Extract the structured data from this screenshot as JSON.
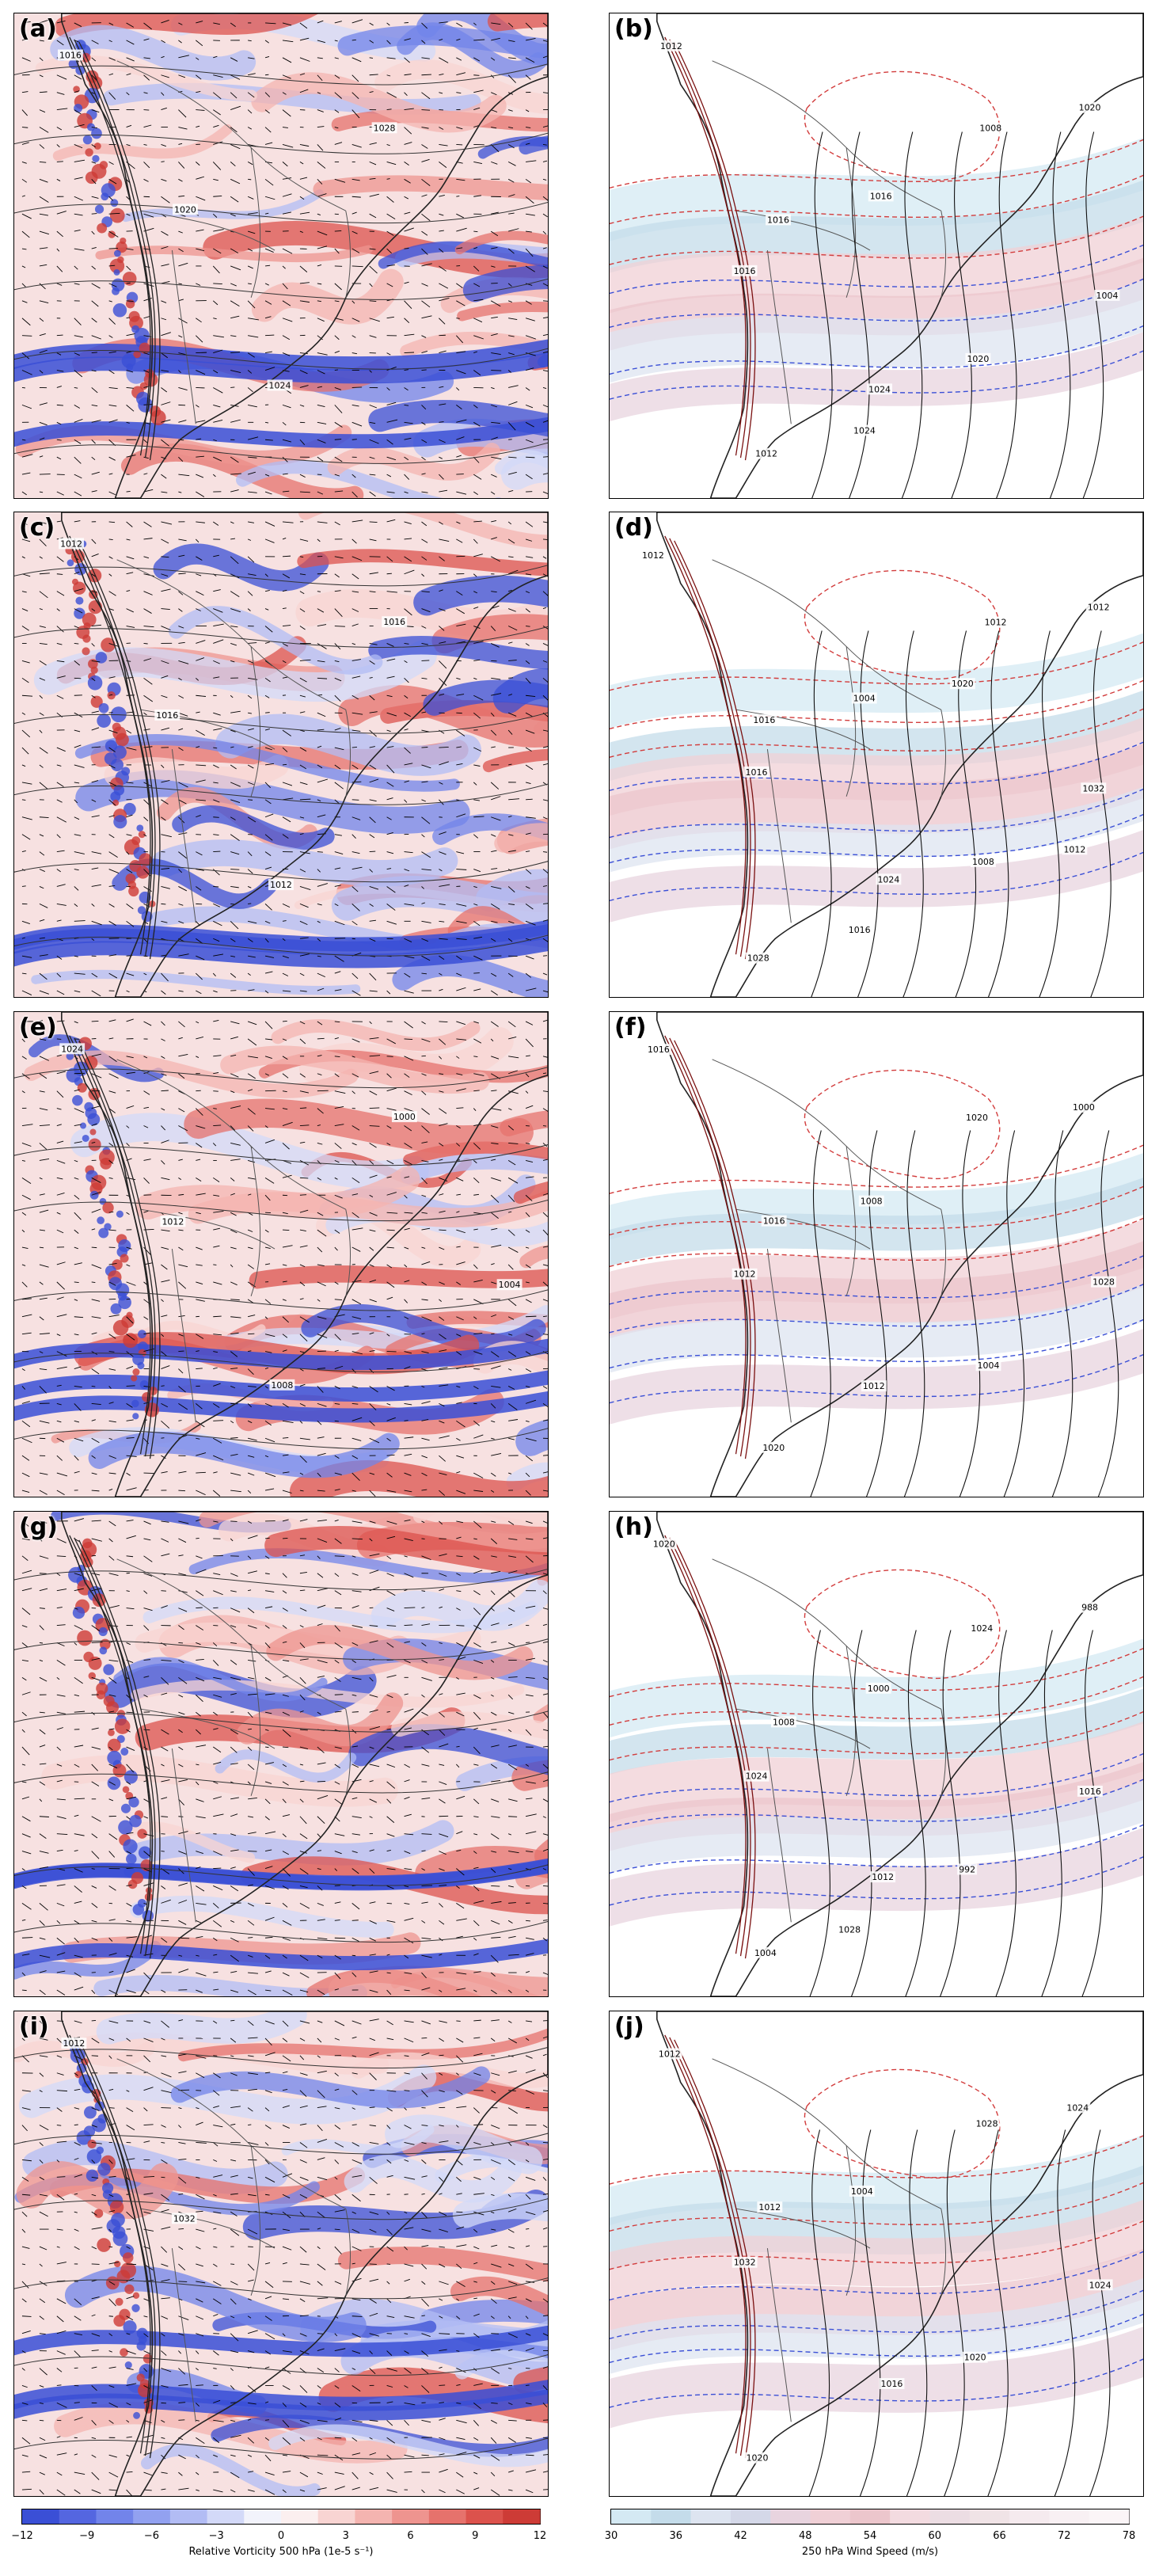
{
  "panels": [
    {
      "id": "a",
      "label": "(a)",
      "type": "vorticity",
      "isobars": [
        "1016",
        "1020",
        "1024",
        "1028"
      ]
    },
    {
      "id": "b",
      "label": "(b)",
      "type": "wind",
      "isobars": [
        "1012",
        "1016",
        "1024",
        "1008",
        "1004",
        "1012",
        "1016",
        "1020",
        "1020",
        "1016",
        "1024"
      ]
    },
    {
      "id": "c",
      "label": "(c)",
      "type": "vorticity",
      "isobars": [
        "1012",
        "1016",
        "1012",
        "1016"
      ]
    },
    {
      "id": "d",
      "label": "(d)",
      "type": "wind",
      "isobars": [
        "1012",
        "1016",
        "1024",
        "1012",
        "1032",
        "1028",
        "1004",
        "1008",
        "1012",
        "1016",
        "1016",
        "1020",
        "1012"
      ]
    },
    {
      "id": "e",
      "label": "(e)",
      "type": "vorticity",
      "isobars": [
        "1024",
        "1012",
        "1008",
        "1000",
        "1004"
      ]
    },
    {
      "id": "f",
      "label": "(f)",
      "type": "wind",
      "isobars": [
        "1016",
        "1016",
        "1012",
        "1020",
        "1028",
        "1020",
        "1008",
        "1004",
        "1000",
        "1012"
      ]
    },
    {
      "id": "g",
      "label": "(g)",
      "type": "vorticity",
      "isobars": []
    },
    {
      "id": "h",
      "label": "(h)",
      "type": "wind",
      "isobars": [
        "1020",
        "1008",
        "1012",
        "1024",
        "1016",
        "1004",
        "1000",
        "992",
        "988",
        "1024",
        "1028"
      ]
    },
    {
      "id": "i",
      "label": "(i)",
      "type": "vorticity",
      "isobars": [
        "1012",
        "1032"
      ]
    },
    {
      "id": "j",
      "label": "(j)",
      "type": "wind",
      "isobars": [
        "1012",
        "1012",
        "1016",
        "1028",
        "1024",
        "1020",
        "1004",
        "1020",
        "1024",
        "1032"
      ]
    }
  ],
  "colorbars": [
    {
      "id": "vorticity",
      "label": "Relative Vorticity 500 hPa (1e-5 s⁻¹)",
      "ticks": [
        "−12",
        "−9",
        "−6",
        "−3",
        "0",
        "3",
        "6",
        "9",
        "12"
      ],
      "range": [
        -12,
        12
      ],
      "colors": [
        "#3a4fd6",
        "#5466e0",
        "#7284ea",
        "#92a1f0",
        "#b2bcf4",
        "#d3d9f8",
        "#f2f3fb",
        "#fbefef",
        "#f8d4d2",
        "#f4b4b0",
        "#ee948f",
        "#e6726c",
        "#dc524c",
        "#cd3b36"
      ]
    },
    {
      "id": "wind",
      "label": "250 hPa Wind Speed (m/s)",
      "ticks": [
        "30",
        "36",
        "42",
        "48",
        "54",
        "60",
        "66",
        "72",
        "78"
      ],
      "range": [
        30,
        78
      ],
      "colors": [
        "#d4e9f3",
        "#c4dcea",
        "#dde4f0",
        "#d4d8e8",
        "#e8d4df",
        "#f0d0d6",
        "#ecc6cc",
        "#f3dbe0",
        "#ecdde3",
        "#f0e3e6",
        "#f5eaee",
        "#f8f0f3",
        "#fbf5f7"
      ]
    }
  ]
}
